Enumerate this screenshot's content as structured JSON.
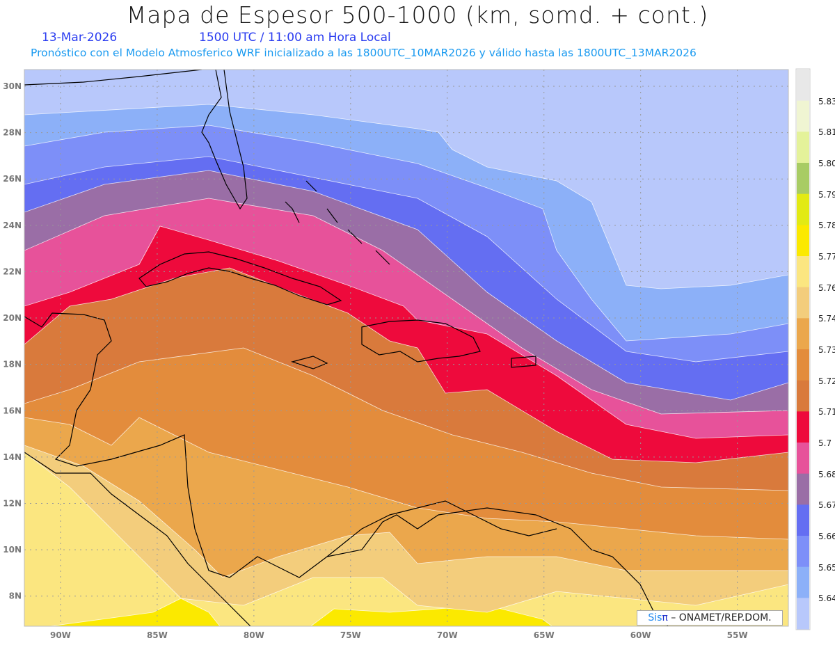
{
  "title": "Mapa de Espesor 500-1000 (km, somd. + cont.)",
  "date": "13-Mar-2026",
  "time": "1500 UTC / 11:00 am Hora Local",
  "forecast": "Pronóstico con el Modelo Atmosferico WRF inicializado a las 1800UTC_10MAR2026 y válido hasta las  1800UTC_13MAR2026",
  "credit": {
    "brand": "Sis",
    "brand_symbol": "π",
    "text": " – ONAMET/REP.DOM."
  },
  "axes": {
    "lon_labels": [
      "90W",
      "85W",
      "80W",
      "75W",
      "70W",
      "65W",
      "60W",
      "55W"
    ],
    "lon_values": [
      -90,
      -85,
      -80,
      -75,
      -70,
      -65,
      -60,
      -55
    ],
    "lat_labels": [
      "30N",
      "28N",
      "26N",
      "24N",
      "22N",
      "20N",
      "18N",
      "16N",
      "14N",
      "12N",
      "10N",
      "8N"
    ],
    "lat_values": [
      30,
      28,
      26,
      24,
      22,
      20,
      18,
      16,
      14,
      12,
      10,
      8
    ],
    "lon_range": [
      -91.87,
      -52.36
    ],
    "lat_range": [
      6.7,
      30.72
    ]
  },
  "colorbar": {
    "labels": [
      "5.831",
      "5.819",
      "5.807",
      "5.795",
      "5.783",
      "5.772",
      "5.76",
      "5.748",
      "5.736",
      "5.724",
      "5.712",
      "5.7",
      "5.688",
      "5.676",
      "5.664",
      "5.652",
      "5.64"
    ],
    "colors": [
      "#e8e8e8",
      "#f0f5d2",
      "#e4f29a",
      "#a8cc64",
      "#e2ea14",
      "#fbe900",
      "#fbe680",
      "#f3cd7c",
      "#eba74c",
      "#e38c3c",
      "#d97a3c",
      "#ee0a3c",
      "#e7529a",
      "#9a6ea6",
      "#646ef2",
      "#7d8ff8",
      "#8cb0f8",
      "#b8c8fb"
    ]
  }
}
